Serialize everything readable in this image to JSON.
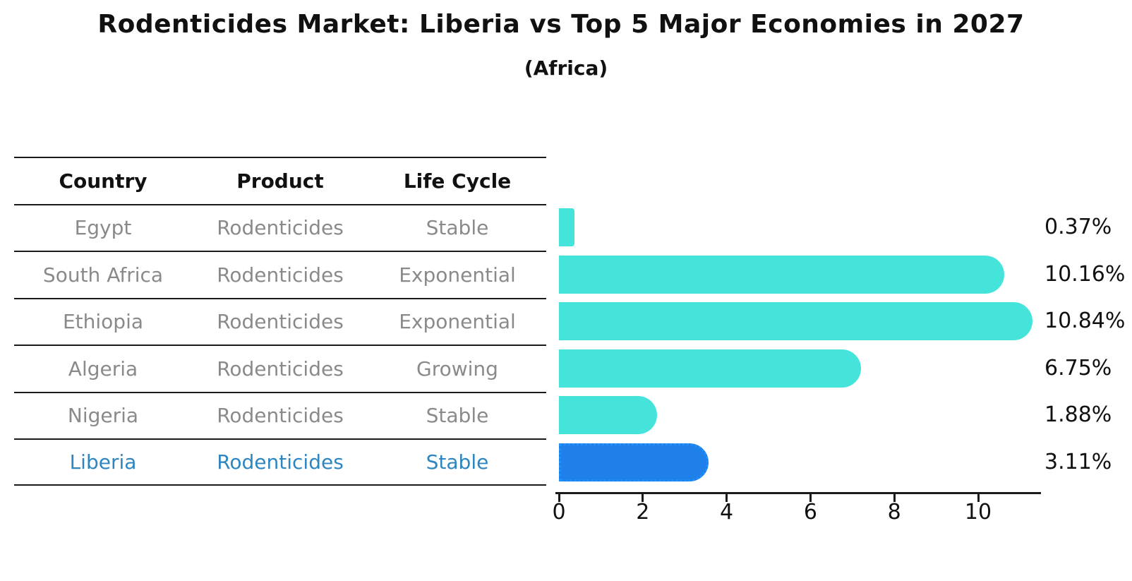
{
  "header": {
    "title": "Rodenticides Market: Liberia vs Top 5 Major Economies in 2027",
    "subtitle": "(Africa)"
  },
  "table": {
    "headers": [
      "Country",
      "Product",
      "Life Cycle"
    ],
    "rows": [
      {
        "country": "Egypt",
        "product": "Rodenticides",
        "life_cycle": "Stable",
        "highlight": false
      },
      {
        "country": "South Africa",
        "product": "Rodenticides",
        "life_cycle": "Exponential",
        "highlight": false
      },
      {
        "country": "Ethiopia",
        "product": "Rodenticides",
        "life_cycle": "Exponential",
        "highlight": false
      },
      {
        "country": "Algeria",
        "product": "Rodenticides",
        "life_cycle": "Growing",
        "highlight": false
      },
      {
        "country": "Nigeria",
        "product": "Rodenticides",
        "life_cycle": "Stable",
        "highlight": false
      },
      {
        "country": "Liberia",
        "product": "Rodenticides",
        "life_cycle": "Stable",
        "highlight": true
      }
    ]
  },
  "chart_data": {
    "type": "bar",
    "orientation": "horizontal",
    "title": "Rodenticides Market: Liberia vs Top 5 Major Economies in 2027",
    "subtitle": "(Africa)",
    "categories": [
      "Egypt",
      "South Africa",
      "Ethiopia",
      "Algeria",
      "Nigeria",
      "Liberia"
    ],
    "values": [
      0.37,
      10.16,
      10.84,
      6.75,
      1.88,
      3.11
    ],
    "value_labels": [
      "0.37%",
      "10.16%",
      "10.84%",
      "6.75%",
      "1.88%",
      "3.11%"
    ],
    "unit": "%",
    "xlim": [
      0,
      11.4
    ],
    "xticks": [
      0,
      2,
      4,
      6,
      8,
      10
    ],
    "xtick_labels": [
      "0",
      "2",
      "4",
      "6",
      "8",
      "10"
    ],
    "grid": false,
    "legend": false,
    "highlight_index": 5,
    "bar_color": "#45e4db",
    "highlight_color": "#1e80e8",
    "highlight_edge_color": "#1e90ff",
    "highlight_edge_style": "dotted"
  },
  "colors": {
    "background": "#ffffff",
    "text": "#111111",
    "muted_text": "#8a8a8a",
    "highlight_text": "#2e86c1",
    "line": "#1a1a1a"
  }
}
